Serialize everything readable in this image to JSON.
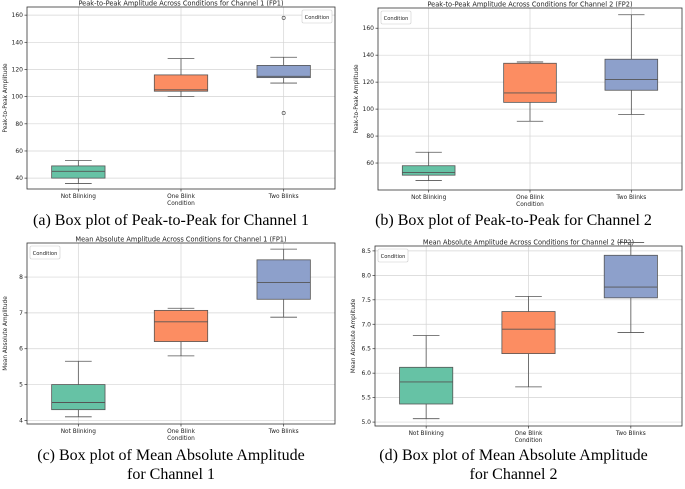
{
  "colors": {
    "not_blinking": "#66c2a5",
    "one_blink": "#fc8d62",
    "two_blinks": "#8da0cb",
    "grid": "#d4d4d4",
    "frame": "#333333"
  },
  "chart_data": [
    {
      "type": "box",
      "title": "Peak-to-Peak Amplitude Across Conditions for Channel 1 (FP1)",
      "xlabel": "Condition",
      "ylabel": "Peak-to-Peak Amplitude",
      "categories": [
        "Not Blinking",
        "One Blink",
        "Two Blinks"
      ],
      "legend_title": "Condition",
      "legend_position": "top-right",
      "ylim": [
        32,
        166
      ],
      "yticks": [
        40,
        60,
        80,
        100,
        120,
        140,
        160
      ],
      "boxes": [
        {
          "whisker_low": 36,
          "q1": 40,
          "median": 45,
          "q3": 49,
          "whisker_high": 53,
          "outliers": []
        },
        {
          "whisker_low": 100,
          "q1": 104,
          "median": 105,
          "q3": 116,
          "whisker_high": 128,
          "outliers": []
        },
        {
          "whisker_low": 110,
          "q1": 114,
          "median": 115,
          "q3": 123,
          "whisker_high": 129,
          "outliers": [
            88,
            158
          ]
        }
      ],
      "caption": "(a) Box plot of Peak-to-Peak for Channel 1"
    },
    {
      "type": "box",
      "title": "Peak-to-Peak Amplitude Across Conditions for Channel 2 (FP2)",
      "xlabel": "Condition",
      "ylabel": "Peak-to-Peak Amplitude",
      "categories": [
        "Not Blinking",
        "One Blink",
        "Two Blinks"
      ],
      "legend_title": "Condition",
      "legend_position": "top-left",
      "ylim": [
        40,
        175
      ],
      "yticks": [
        60,
        80,
        100,
        120,
        140,
        160
      ],
      "boxes": [
        {
          "whisker_low": 47,
          "q1": 51,
          "median": 53,
          "q3": 58,
          "whisker_high": 68,
          "outliers": []
        },
        {
          "whisker_low": 91,
          "q1": 105,
          "median": 112,
          "q3": 134,
          "whisker_high": 135,
          "outliers": []
        },
        {
          "whisker_low": 96,
          "q1": 114,
          "median": 122,
          "q3": 137,
          "whisker_high": 170,
          "outliers": []
        }
      ],
      "caption": "(b) Box plot of Peak-to-Peak for Channel 2"
    },
    {
      "type": "box",
      "title": "Mean Absolute Amplitude Across Conditions for Channel 1 (FP1)",
      "xlabel": "Condition",
      "ylabel": "Mean Absolute Amplitude",
      "categories": [
        "Not Blinking",
        "One Blink",
        "Two Blinks"
      ],
      "legend_title": "Condition",
      "legend_position": "top-left",
      "ylim": [
        3.9,
        8.95
      ],
      "yticks": [
        4,
        5,
        6,
        7,
        8
      ],
      "boxes": [
        {
          "whisker_low": 4.1,
          "q1": 4.3,
          "median": 4.5,
          "q3": 5.0,
          "whisker_high": 5.65,
          "outliers": []
        },
        {
          "whisker_low": 5.8,
          "q1": 6.2,
          "median": 6.75,
          "q3": 7.07,
          "whisker_high": 7.13,
          "outliers": []
        },
        {
          "whisker_low": 6.88,
          "q1": 7.38,
          "median": 7.85,
          "q3": 8.48,
          "whisker_high": 8.78,
          "outliers": []
        }
      ],
      "caption": "(c) Box plot of Mean Absolute Amplitude for Channel 1"
    },
    {
      "type": "box",
      "title": "Mean Absolute Amplitude Across Conditions for Channel 2 (FP2)",
      "xlabel": "Condition",
      "ylabel": "Mean Absolute Amplitude",
      "categories": [
        "Not Blinking",
        "One Blink",
        "Two Blinks"
      ],
      "legend_title": "Condition",
      "legend_position": "top-left",
      "ylim": [
        4.92,
        8.6
      ],
      "yticks": [
        5.0,
        5.5,
        6.0,
        6.5,
        7.0,
        7.5,
        8.0,
        8.5
      ],
      "yticklabels": [
        "5.0",
        "5.5",
        "6.0",
        "6.5",
        "7.0",
        "7.5",
        "8.0",
        "8.5"
      ],
      "boxes": [
        {
          "whisker_low": 5.07,
          "q1": 5.37,
          "median": 5.82,
          "q3": 6.12,
          "whisker_high": 6.77,
          "outliers": []
        },
        {
          "whisker_low": 5.72,
          "q1": 6.4,
          "median": 6.9,
          "q3": 7.26,
          "whisker_high": 7.57,
          "outliers": []
        },
        {
          "whisker_low": 6.83,
          "q1": 7.54,
          "median": 7.76,
          "q3": 8.41,
          "whisker_high": 8.67,
          "outliers": []
        }
      ],
      "caption": "(d) Box plot of Mean Absolute Amplitude for Channel 2"
    }
  ]
}
